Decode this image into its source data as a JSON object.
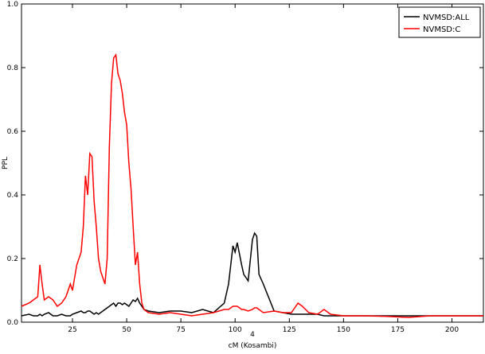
{
  "chart_data": {
    "type": "line",
    "subtitle": "4",
    "xlabel": "cM (Kosambi)",
    "ylabel": "PPL",
    "xlim": [
      1.5,
      214.5
    ],
    "ylim": [
      0,
      1
    ],
    "xticks": [
      25,
      50,
      75,
      100,
      125,
      150,
      175,
      200
    ],
    "yticks": [
      {
        "value": 0,
        "label": "0.0"
      },
      0.2,
      0.4,
      0.6,
      0.8,
      {
        "value": 1,
        "label": "1.0"
      }
    ],
    "legend": "upper right",
    "x": [
      1.5,
      5,
      7,
      9,
      10,
      11,
      12,
      14,
      16,
      18,
      20,
      22,
      24,
      25,
      27,
      29,
      30,
      31,
      32,
      33,
      34,
      35,
      36,
      37,
      38,
      40,
      41,
      42,
      43,
      44,
      45,
      46,
      47,
      48,
      49,
      50,
      51,
      52,
      53,
      54,
      55,
      56,
      57,
      58,
      60,
      65,
      70,
      75,
      80,
      85,
      90,
      95,
      97,
      99,
      100,
      101,
      103,
      104,
      106,
      108,
      109,
      110,
      111,
      113,
      118,
      122,
      126,
      129,
      131,
      134,
      138,
      141,
      144,
      150,
      160,
      170,
      180,
      190,
      200,
      214.5
    ],
    "series": [
      {
        "name": "NVMSD:ALL",
        "color": "#000000",
        "values": [
          0.02,
          0.025,
          0.02,
          0.02,
          0.025,
          0.02,
          0.025,
          0.03,
          0.02,
          0.02,
          0.025,
          0.02,
          0.02,
          0.025,
          0.03,
          0.035,
          0.03,
          0.03,
          0.035,
          0.035,
          0.03,
          0.025,
          0.03,
          0.025,
          0.03,
          0.04,
          0.045,
          0.05,
          0.055,
          0.06,
          0.05,
          0.06,
          0.06,
          0.055,
          0.06,
          0.055,
          0.05,
          0.06,
          0.07,
          0.065,
          0.075,
          0.06,
          0.05,
          0.04,
          0.035,
          0.03,
          0.035,
          0.035,
          0.03,
          0.04,
          0.03,
          0.06,
          0.12,
          0.24,
          0.22,
          0.25,
          0.18,
          0.15,
          0.13,
          0.26,
          0.28,
          0.27,
          0.15,
          0.12,
          0.035,
          0.03,
          0.025,
          0.025,
          0.025,
          0.025,
          0.025,
          0.02,
          0.02,
          0.02,
          0.02,
          0.02,
          0.02,
          0.02,
          0.02,
          0.02
        ]
      },
      {
        "name": "NVMSD:C",
        "color": "#ff0000",
        "values": [
          0.05,
          0.06,
          0.07,
          0.08,
          0.18,
          0.12,
          0.07,
          0.08,
          0.07,
          0.05,
          0.06,
          0.08,
          0.12,
          0.1,
          0.18,
          0.22,
          0.3,
          0.46,
          0.4,
          0.53,
          0.52,
          0.38,
          0.3,
          0.2,
          0.16,
          0.12,
          0.2,
          0.55,
          0.75,
          0.83,
          0.84,
          0.78,
          0.76,
          0.72,
          0.66,
          0.62,
          0.5,
          0.42,
          0.3,
          0.18,
          0.22,
          0.12,
          0.06,
          0.04,
          0.03,
          0.025,
          0.03,
          0.025,
          0.02,
          0.025,
          0.03,
          0.04,
          0.04,
          0.05,
          0.05,
          0.05,
          0.04,
          0.04,
          0.035,
          0.04,
          0.045,
          0.045,
          0.04,
          0.03,
          0.035,
          0.03,
          0.03,
          0.06,
          0.05,
          0.03,
          0.025,
          0.04,
          0.025,
          0.02,
          0.02,
          0.018,
          0.015,
          0.02,
          0.02,
          0.02
        ]
      }
    ]
  }
}
